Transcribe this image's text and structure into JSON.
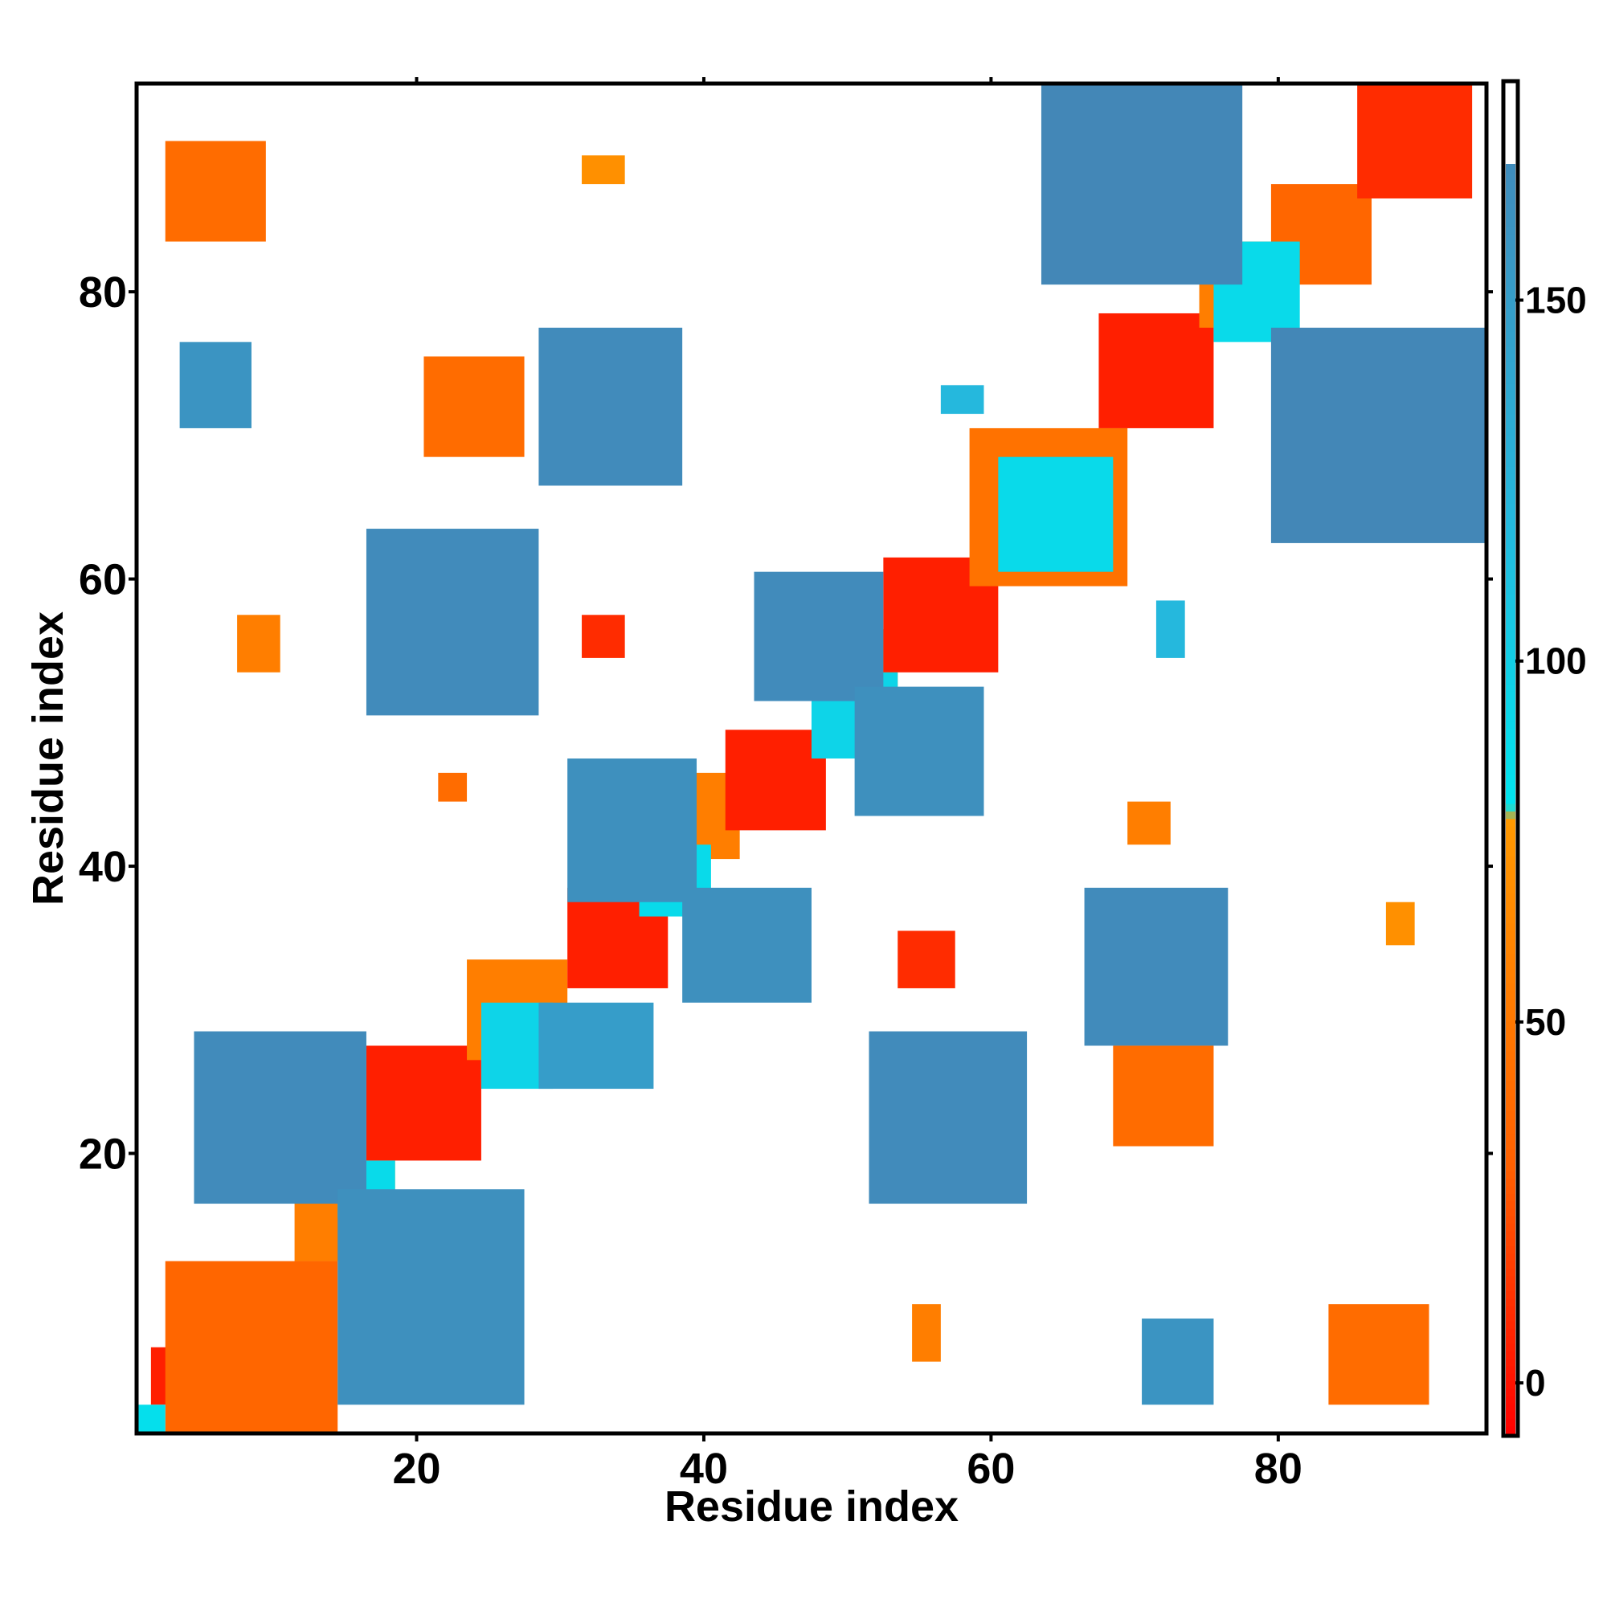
{
  "chart_data": {
    "type": "heatmap",
    "title": "",
    "xlabel": "Residue index",
    "ylabel": "Residue index",
    "xlim": [
      0.5,
      94.5
    ],
    "ylim": [
      0.5,
      94.5
    ],
    "x_ticks": [
      20,
      40,
      60,
      80
    ],
    "y_ticks": [
      20,
      40,
      60,
      80
    ],
    "colorbar": {
      "range": [
        -7,
        180
      ],
      "ticks": [
        0,
        50,
        100,
        150
      ],
      "stops": [
        {
          "value": -7,
          "color": "#ff0000"
        },
        {
          "value": 30,
          "color": "#ff6000"
        },
        {
          "value": 78,
          "color": "#ff9900"
        },
        {
          "value": 80,
          "color": "#00e5ee"
        },
        {
          "value": 120,
          "color": "#25b8dd"
        },
        {
          "value": 180,
          "color": "#4682b4"
        }
      ],
      "top_cap": "#ffffff"
    },
    "grid": false,
    "legend": "colorbar-right",
    "cells": [
      {
        "x1": 2,
        "x2": 5,
        "y1": 3,
        "y2": 6,
        "v": 5,
        "seg": "main-diagonal"
      },
      {
        "x1": 3,
        "x2": 14,
        "y1": 1,
        "y2": 12,
        "v": 35,
        "seg": "main-diagonal"
      },
      {
        "x1": 12,
        "x2": 18,
        "y1": 13,
        "y2": 19,
        "v": 55,
        "seg": "main-diagonal"
      },
      {
        "x1": 17,
        "x2": 24,
        "y1": 20,
        "y2": 27,
        "v": 5,
        "seg": "main-diagonal"
      },
      {
        "x1": 24,
        "x2": 30,
        "y1": 27,
        "y2": 33,
        "v": 55,
        "seg": "main-diagonal"
      },
      {
        "x1": 31,
        "x2": 37,
        "y1": 32,
        "y2": 38,
        "v": 5,
        "seg": "main-diagonal"
      },
      {
        "x1": 37,
        "x2": 42,
        "y1": 41,
        "y2": 46,
        "v": 55,
        "seg": "main-diagonal"
      },
      {
        "x1": 42,
        "x2": 48,
        "y1": 43,
        "y2": 49,
        "v": 5,
        "seg": "main-diagonal"
      },
      {
        "x1": 48,
        "x2": 53,
        "y1": 51,
        "y2": 56,
        "v": 55,
        "seg": "main-diagonal"
      },
      {
        "x1": 53,
        "x2": 60,
        "y1": 54,
        "y2": 61,
        "v": 5,
        "seg": "main-diagonal"
      },
      {
        "x1": 59,
        "x2": 69,
        "y1": 60,
        "y2": 70,
        "v": 45,
        "seg": "main-diagonal"
      },
      {
        "x1": 68,
        "x2": 75,
        "y1": 71,
        "y2": 78,
        "v": 5,
        "seg": "main-diagonal"
      },
      {
        "x1": 75,
        "x2": 80,
        "y1": 78,
        "y2": 83,
        "v": 55,
        "seg": "main-diagonal"
      },
      {
        "x1": 80,
        "x2": 86,
        "y1": 81,
        "y2": 87,
        "v": 35,
        "seg": "main-diagonal"
      },
      {
        "x1": 86,
        "x2": 93,
        "y1": 87,
        "y2": 94,
        "v": 10,
        "seg": "main-diagonal"
      },
      {
        "x1": 1,
        "x2": 2,
        "y1": 1,
        "y2": 2,
        "v": 85,
        "seg": "diag-start"
      },
      {
        "x1": 15,
        "x2": 18,
        "y1": 16,
        "y2": 19,
        "v": 90,
        "seg": "diag-cross"
      },
      {
        "x1": 25,
        "x2": 29,
        "y1": 25,
        "y2": 30,
        "v": 95,
        "seg": "diag-cross"
      },
      {
        "x1": 36,
        "x2": 40,
        "y1": 37,
        "y2": 41,
        "v": 90,
        "seg": "diag-cross"
      },
      {
        "x1": 48,
        "x2": 53,
        "y1": 48,
        "y2": 53,
        "v": 95,
        "seg": "diag-cross"
      },
      {
        "x1": 61,
        "x2": 68,
        "y1": 61,
        "y2": 68,
        "v": 90,
        "seg": "diag-cross"
      },
      {
        "x1": 76,
        "x2": 81,
        "y1": 77,
        "y2": 83,
        "v": 90,
        "seg": "diag-cross"
      },
      {
        "x1": 5,
        "x2": 16,
        "y1": 17,
        "y2": 28,
        "v": 170,
        "seg": "anti-1"
      },
      {
        "x1": 15,
        "x2": 27,
        "y1": 3,
        "y2": 17,
        "v": 165,
        "seg": "anti-1b"
      },
      {
        "x1": 29,
        "x2": 36,
        "y1": 25,
        "y2": 30,
        "v": 150,
        "seg": "anti-2"
      },
      {
        "x1": 31,
        "x2": 39,
        "y1": 38,
        "y2": 47,
        "v": 165,
        "seg": "anti-3"
      },
      {
        "x1": 39,
        "x2": 47,
        "y1": 31,
        "y2": 38,
        "v": 165,
        "seg": "anti-3b"
      },
      {
        "x1": 44,
        "x2": 52,
        "y1": 52,
        "y2": 60,
        "v": 170,
        "seg": "anti-4"
      },
      {
        "x1": 51,
        "x2": 59,
        "y1": 44,
        "y2": 52,
        "v": 165,
        "seg": "anti-4b"
      },
      {
        "x1": 17,
        "x2": 28,
        "y1": 51,
        "y2": 63,
        "v": 170,
        "seg": "long-1"
      },
      {
        "x1": 52,
        "x2": 62,
        "y1": 17,
        "y2": 28,
        "v": 170,
        "seg": "long-1b"
      },
      {
        "x1": 29,
        "x2": 38,
        "y1": 67,
        "y2": 77,
        "v": 170,
        "seg": "long-2"
      },
      {
        "x1": 67,
        "x2": 76,
        "y1": 28,
        "y2": 38,
        "v": 170,
        "seg": "long-2b"
      },
      {
        "x1": 64,
        "x2": 77,
        "y1": 81,
        "y2": 94,
        "v": 175,
        "seg": "long-3"
      },
      {
        "x1": 80,
        "x2": 94,
        "y1": 63,
        "y2": 77,
        "v": 175,
        "seg": "long-3b"
      },
      {
        "x1": 4,
        "x2": 8,
        "y1": 71,
        "y2": 76,
        "v": 160,
        "seg": "long-4"
      },
      {
        "x1": 71,
        "x2": 75,
        "y1": 3,
        "y2": 8,
        "v": 160,
        "seg": "long-4b"
      },
      {
        "x1": 3,
        "x2": 9,
        "y1": 84,
        "y2": 90,
        "v": 40,
        "seg": "sparse-1"
      },
      {
        "x1": 84,
        "x2": 90,
        "y1": 3,
        "y2": 9,
        "v": 40,
        "seg": "sparse-1b"
      },
      {
        "x1": 21,
        "x2": 27,
        "y1": 69,
        "y2": 75,
        "v": 40,
        "seg": "sparse-2"
      },
      {
        "x1": 69,
        "x2": 75,
        "y1": 21,
        "y2": 27,
        "v": 40,
        "seg": "sparse-2b"
      },
      {
        "x1": 32,
        "x2": 34,
        "y1": 88,
        "y2": 89,
        "v": 70,
        "seg": "sparse-3"
      },
      {
        "x1": 8,
        "x2": 10,
        "y1": 54,
        "y2": 57,
        "v": 55,
        "seg": "sparse-4"
      },
      {
        "x1": 32,
        "x2": 34,
        "y1": 55,
        "y2": 57,
        "v": 10,
        "seg": "sparse-5"
      },
      {
        "x1": 54,
        "x2": 57,
        "y1": 32,
        "y2": 35,
        "v": 10,
        "seg": "sparse-5b"
      },
      {
        "x1": 55,
        "x2": 56,
        "y1": 6,
        "y2": 9,
        "v": 55,
        "seg": "sparse-6"
      },
      {
        "x1": 70,
        "x2": 72,
        "y1": 42,
        "y2": 44,
        "v": 55,
        "seg": "sparse-7"
      },
      {
        "x1": 22,
        "x2": 23,
        "y1": 45,
        "y2": 46,
        "v": 40,
        "seg": "sparse-8"
      },
      {
        "x1": 88,
        "x2": 89,
        "y1": 35,
        "y2": 37,
        "v": 70,
        "seg": "sparse-9"
      },
      {
        "x1": 57,
        "x2": 59,
        "y1": 72,
        "y2": 73,
        "v": 120,
        "seg": "sparse-10"
      },
      {
        "x1": 72,
        "x2": 73,
        "y1": 55,
        "y2": 58,
        "v": 120,
        "seg": "sparse-11"
      }
    ]
  }
}
